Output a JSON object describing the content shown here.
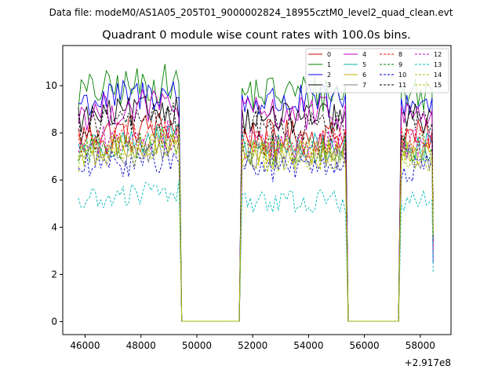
{
  "figure": {
    "suptitle": "Data file: modeM0/AS1A05_205T01_9000002824_18955cztM0_level2_quad_clean.evt"
  },
  "chart_data": {
    "type": "line",
    "title": "Quadrant 0 module wise count rates with 100.0s bins.",
    "xlabel": "",
    "ylabel": "",
    "x_offset_label": "+2.917e8",
    "xlim": [
      45200,
      59100
    ],
    "ylim": [
      -0.55,
      11.7
    ],
    "xticks": [
      46000,
      48000,
      50000,
      52000,
      54000,
      56000,
      58000
    ],
    "yticks": [
      0,
      2,
      4,
      6,
      8,
      10
    ],
    "grid": false,
    "legend_position": "top-right",
    "legend_columns": 4,
    "segments": [
      {
        "start": 45760,
        "end": 49360
      },
      {
        "start": 51620,
        "end": 55320
      },
      {
        "start": 57320,
        "end": 58460
      }
    ],
    "gaps_end": [
      49560,
      51520,
      55470,
      57220
    ],
    "series": [
      {
        "name": "0",
        "color": "#cc0000",
        "dash": "solid",
        "level": 7.9,
        "amp": 0.45,
        "end_value": 4.0
      },
      {
        "name": "1",
        "color": "#008000",
        "dash": "solid",
        "level": 9.7,
        "amp": 0.55,
        "end_value": 3.5
      },
      {
        "name": "2",
        "color": "#0000ee",
        "dash": "solid",
        "level": 9.3,
        "amp": 0.5,
        "end_value": 2.5
      },
      {
        "name": "3",
        "color": "#000000",
        "dash": "solid",
        "level": 8.6,
        "amp": 0.45,
        "end_value": 3.4
      },
      {
        "name": "4",
        "color": "#c000c0",
        "dash": "solid",
        "level": 8.8,
        "amp": 0.5,
        "end_value": 3.0
      },
      {
        "name": "5",
        "color": "#00b0a0",
        "dash": "solid",
        "level": 7.4,
        "amp": 0.4,
        "end_value": 3.8
      },
      {
        "name": "6",
        "color": "#c0b000",
        "dash": "solid",
        "level": 7.2,
        "amp": 0.4,
        "end_value": 3.6
      },
      {
        "name": "7",
        "color": "#808080",
        "dash": "solid",
        "level": 7.0,
        "amp": 0.4,
        "end_value": 3.7
      },
      {
        "name": "8",
        "color": "#ff0000",
        "dash": "dashed",
        "level": 7.6,
        "amp": 0.45,
        "end_value": 4.1
      },
      {
        "name": "9",
        "color": "#008000",
        "dash": "dashed",
        "level": 7.3,
        "amp": 0.45,
        "end_value": 3.9
      },
      {
        "name": "10",
        "color": "#0000cc",
        "dash": "dashed",
        "level": 6.5,
        "amp": 0.4,
        "end_value": 3.2
      },
      {
        "name": "11",
        "color": "#000000",
        "dash": "dashed",
        "level": 8.3,
        "amp": 0.45,
        "end_value": 3.3
      },
      {
        "name": "12",
        "color": "#c000c0",
        "dash": "dashed",
        "level": 7.5,
        "amp": 0.45,
        "end_value": 2.9
      },
      {
        "name": "13",
        "color": "#00b8b8",
        "dash": "dashed",
        "level": 5.1,
        "amp": 0.35,
        "end_value": 2.1
      },
      {
        "name": "14",
        "color": "#a0c000",
        "dash": "dashed",
        "level": 7.0,
        "amp": 0.45,
        "end_value": 3.6
      },
      {
        "name": "15",
        "color": "#c0c000",
        "dash": "dashed",
        "level": 7.1,
        "amp": 0.45,
        "end_value": 3.8
      }
    ]
  }
}
